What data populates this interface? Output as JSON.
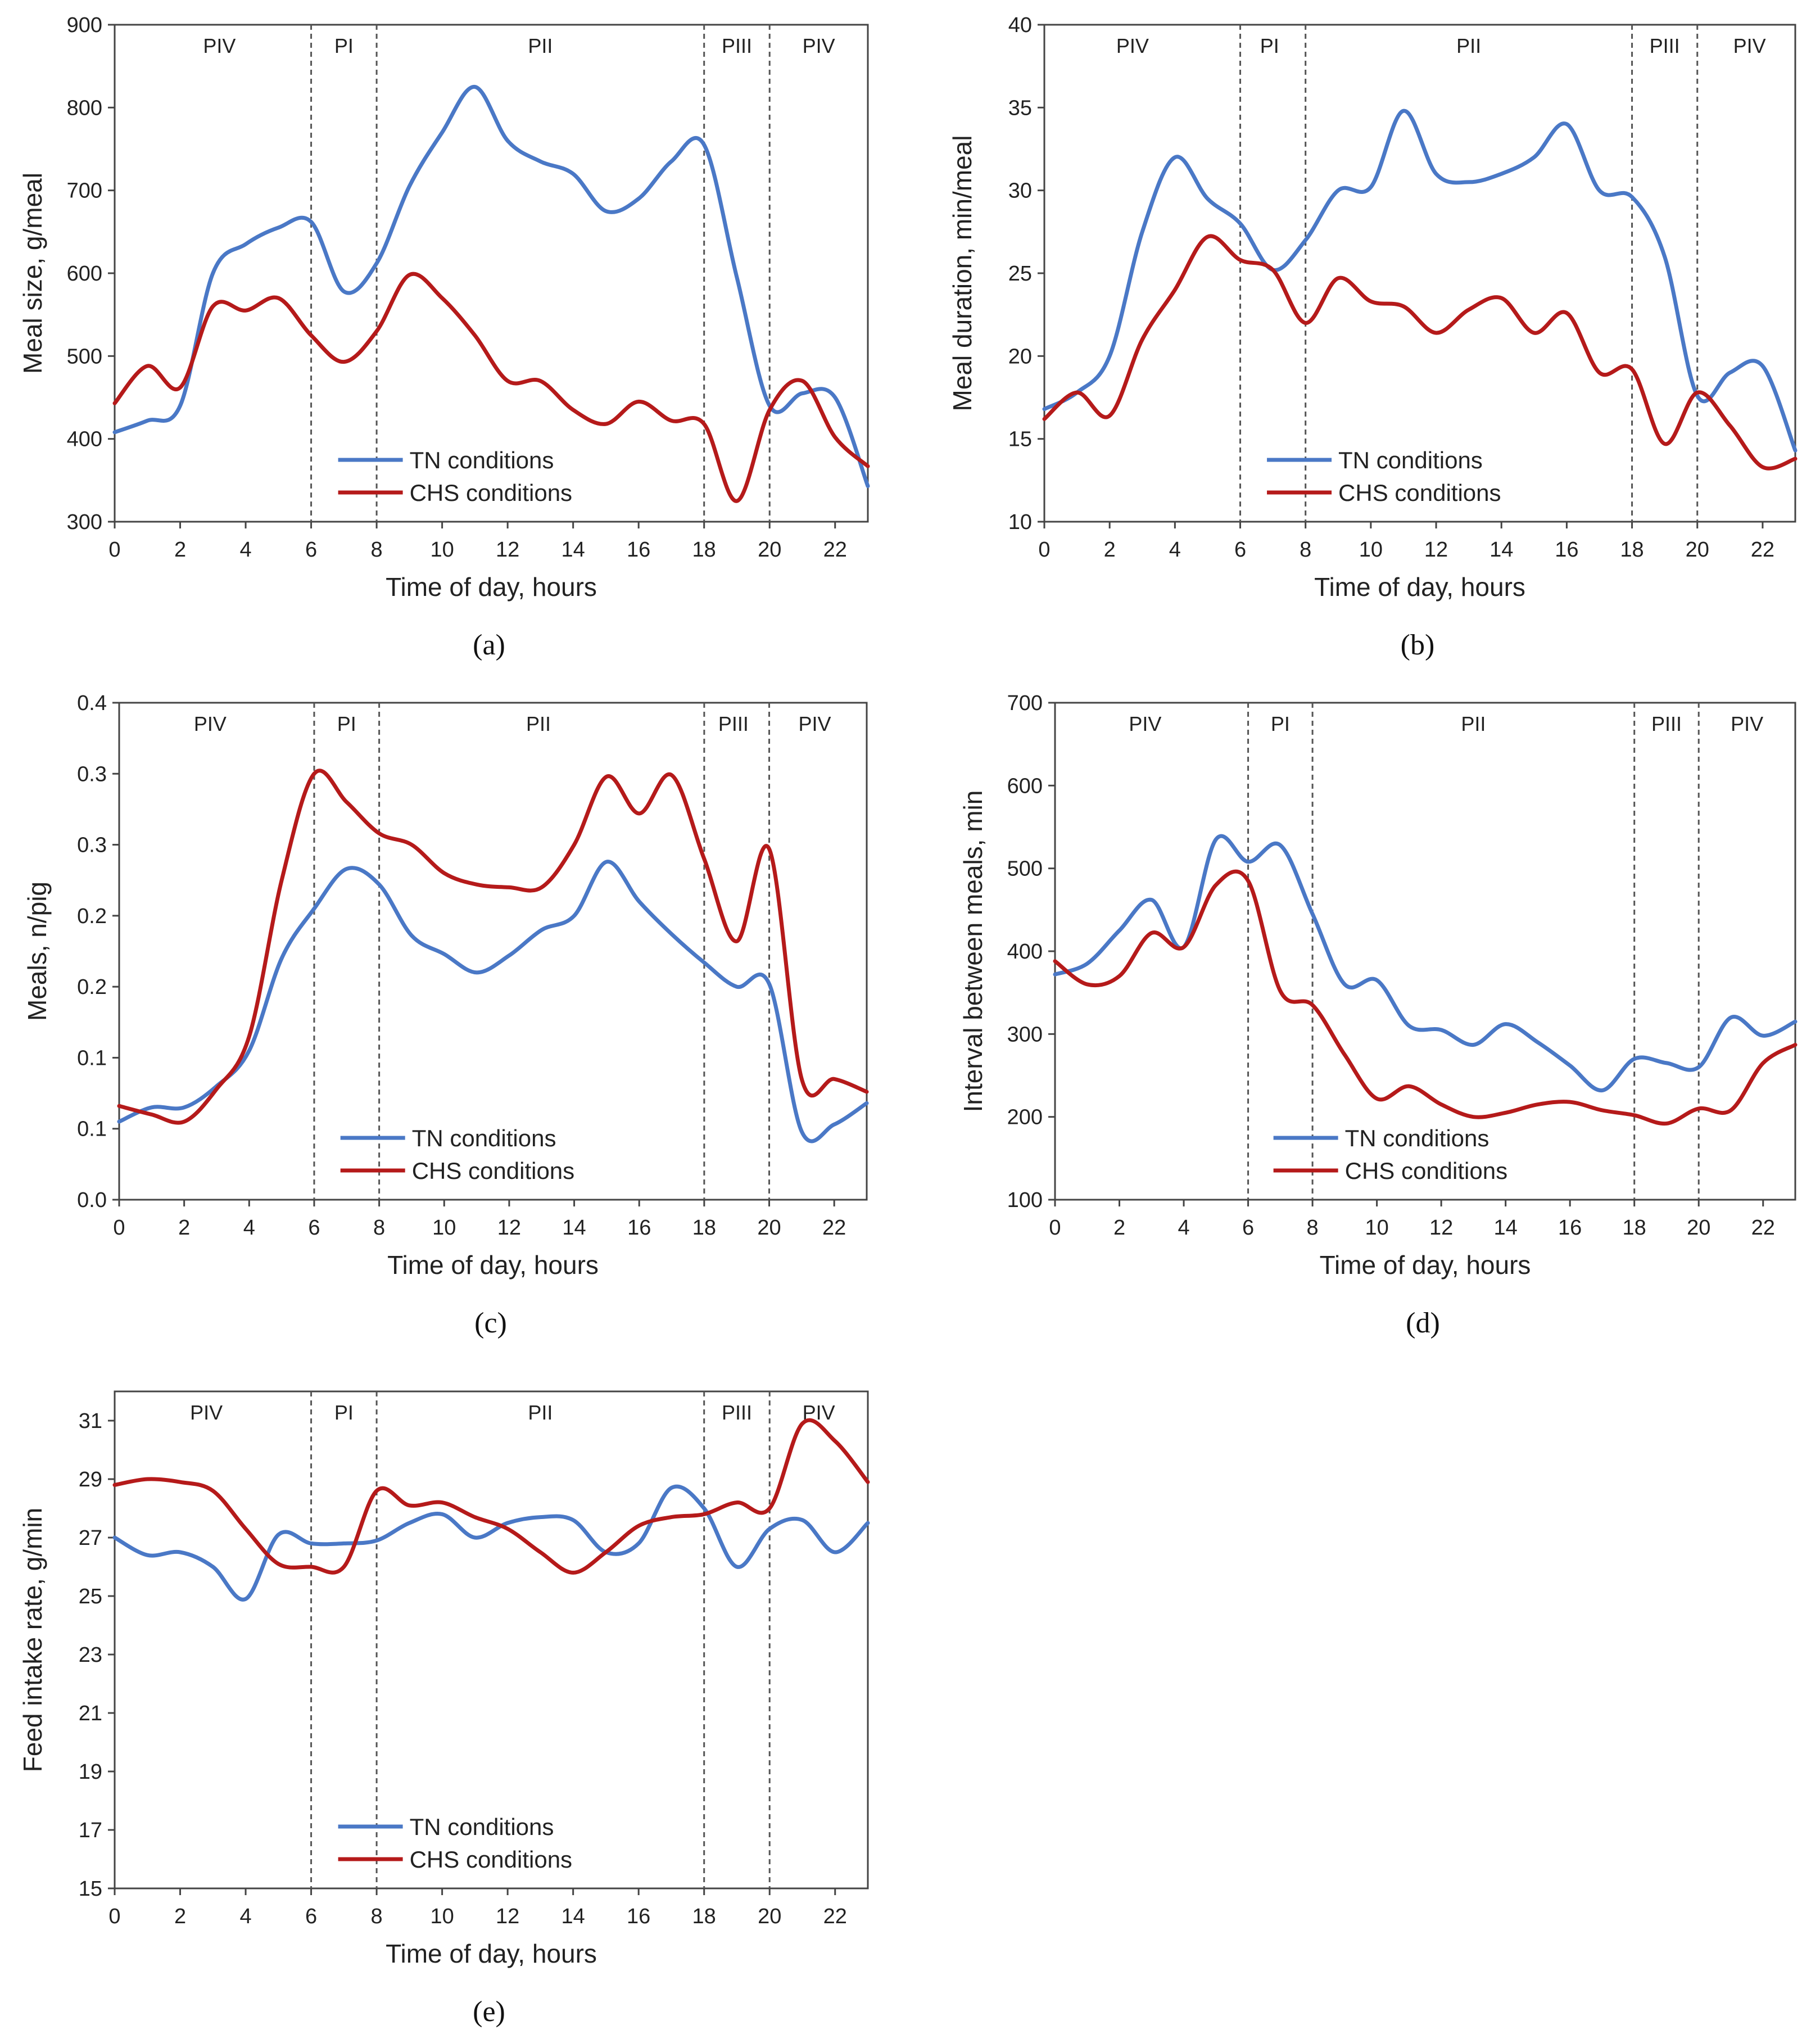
{
  "legend": {
    "tn": "TN conditions",
    "chs": "CHS conditions"
  },
  "colors": {
    "tn": "#4a78c6",
    "chs": "#b51a1a"
  },
  "chart_data": [
    {
      "id": "a",
      "label": "(a)",
      "type": "line",
      "ylabel": "Meal size, g/meal",
      "xlabel": "Time of day, hours",
      "ylim": [
        300,
        900
      ],
      "yticks": [
        300,
        400,
        500,
        600,
        700,
        800,
        900
      ],
      "ytick_labels": [
        "300",
        "400",
        "500",
        "600",
        "700",
        "800",
        "900"
      ],
      "xlim": [
        0,
        23
      ],
      "xticks": [
        0,
        2,
        4,
        6,
        8,
        10,
        12,
        14,
        16,
        18,
        20,
        22
      ],
      "xtick_labels": [
        "0",
        "2",
        "4",
        "6",
        "8",
        "10",
        "12",
        "14",
        "16",
        "18",
        "20",
        "22"
      ],
      "phase_boundaries": [
        6,
        8,
        18,
        20
      ],
      "phases": [
        {
          "label": "PIV",
          "x": 3.2
        },
        {
          "label": "PI",
          "x": 7
        },
        {
          "label": "PII",
          "x": 13
        },
        {
          "label": "PIII",
          "x": 19
        },
        {
          "label": "PIV",
          "x": 21.5
        }
      ],
      "legend_position": "bottom-center",
      "series": [
        {
          "name": "TN conditions",
          "key": "tn",
          "x": [
            0,
            1,
            2,
            3,
            4,
            5,
            6,
            7,
            8,
            9,
            10,
            11,
            12,
            13,
            14,
            15,
            16,
            17,
            18,
            19,
            20,
            21,
            22,
            23
          ],
          "values": [
            408,
            422,
            440,
            600,
            635,
            655,
            662,
            578,
            612,
            705,
            770,
            825,
            760,
            735,
            720,
            675,
            690,
            735,
            755,
            595,
            440,
            455,
            450,
            343
          ]
        },
        {
          "name": "CHS conditions",
          "key": "chs",
          "x": [
            0,
            1,
            2,
            3,
            4,
            5,
            6,
            7,
            8,
            9,
            10,
            11,
            12,
            13,
            14,
            15,
            16,
            17,
            18,
            19,
            20,
            21,
            22,
            23
          ],
          "values": [
            443,
            488,
            462,
            560,
            555,
            570,
            525,
            493,
            530,
            598,
            570,
            525,
            470,
            470,
            435,
            418,
            445,
            422,
            418,
            325,
            435,
            470,
            402,
            367
          ]
        }
      ]
    },
    {
      "id": "b",
      "label": "(b)",
      "type": "line",
      "ylabel": "Meal duration, min/meal",
      "xlabel": "Time of day, hours",
      "ylim": [
        10,
        40
      ],
      "yticks": [
        10,
        15,
        20,
        25,
        30,
        35,
        40
      ],
      "ytick_labels": [
        "10",
        "15",
        "20",
        "25",
        "30",
        "35",
        "40"
      ],
      "xlim": [
        0,
        23
      ],
      "xticks": [
        0,
        2,
        4,
        6,
        8,
        10,
        12,
        14,
        16,
        18,
        20,
        22
      ],
      "xtick_labels": [
        "0",
        "2",
        "4",
        "6",
        "8",
        "10",
        "12",
        "14",
        "16",
        "18",
        "20",
        "22"
      ],
      "phase_boundaries": [
        6,
        8,
        18,
        20
      ],
      "phases": [
        {
          "label": "PIV",
          "x": 2.7
        },
        {
          "label": "PI",
          "x": 6.9
        },
        {
          "label": "PII",
          "x": 13
        },
        {
          "label": "PIII",
          "x": 19
        },
        {
          "label": "PIV",
          "x": 21.6
        }
      ],
      "legend_position": "bottom-center",
      "series": [
        {
          "name": "TN conditions",
          "key": "tn",
          "x": [
            0,
            1,
            2,
            3,
            4,
            5,
            6,
            7,
            8,
            9,
            10,
            11,
            12,
            13,
            14,
            15,
            16,
            17,
            18,
            19,
            20,
            21,
            22,
            23
          ],
          "values": [
            16.8,
            17.8,
            20.0,
            27.5,
            32.0,
            29.5,
            28.0,
            25.2,
            27.0,
            30.0,
            30.2,
            34.8,
            31.0,
            30.5,
            31.0,
            32.0,
            34.0,
            30.0,
            29.6,
            26.0,
            17.6,
            19.0,
            19.4,
            14.3
          ]
        },
        {
          "name": "CHS conditions",
          "key": "chs",
          "x": [
            0,
            1,
            2,
            3,
            4,
            5,
            6,
            7,
            8,
            9,
            10,
            11,
            12,
            13,
            14,
            15,
            16,
            17,
            18,
            19,
            20,
            21,
            22,
            23
          ],
          "values": [
            16.2,
            17.8,
            16.4,
            21.0,
            24.0,
            27.2,
            25.8,
            25.2,
            22.0,
            24.7,
            23.3,
            23.0,
            21.4,
            22.8,
            23.5,
            21.4,
            22.6,
            19.0,
            19.2,
            14.7,
            17.8,
            15.8,
            13.3,
            13.8
          ]
        }
      ]
    },
    {
      "id": "c",
      "label": "(c)",
      "type": "line",
      "ylabel": "Meals, n/pig",
      "xlabel": "Time of day, hours",
      "ylim": [
        0,
        0.35
      ],
      "yticks": [
        0,
        0.05,
        0.1,
        0.15,
        0.2,
        0.25,
        0.3,
        0.35
      ],
      "ytick_labels": [
        "0.0",
        "0.1",
        "0.1",
        "0.2",
        "0.2",
        "0.3",
        "0.3",
        "0.4"
      ],
      "xlim": [
        0,
        23
      ],
      "xticks": [
        0,
        2,
        4,
        6,
        8,
        10,
        12,
        14,
        16,
        18,
        20,
        22
      ],
      "xtick_labels": [
        "0",
        "2",
        "4",
        "6",
        "8",
        "10",
        "12",
        "14",
        "16",
        "18",
        "20",
        "22"
      ],
      "phase_boundaries": [
        6,
        8,
        18,
        20
      ],
      "phases": [
        {
          "label": "PIV",
          "x": 2.8
        },
        {
          "label": "PI",
          "x": 7
        },
        {
          "label": "PII",
          "x": 12.9
        },
        {
          "label": "PIII",
          "x": 18.9
        },
        {
          "label": "PIV",
          "x": 21.4
        }
      ],
      "legend_position": "bottom-center",
      "series": [
        {
          "name": "TN conditions",
          "key": "tn",
          "x": [
            0,
            1,
            2,
            3,
            4,
            5,
            6,
            7,
            8,
            9,
            10,
            11,
            12,
            13,
            14,
            15,
            16,
            17,
            18,
            19,
            20,
            21,
            22,
            23
          ],
          "values": [
            0.055,
            0.065,
            0.065,
            0.08,
            0.105,
            0.17,
            0.205,
            0.233,
            0.222,
            0.186,
            0.173,
            0.16,
            0.172,
            0.19,
            0.2,
            0.238,
            0.21,
            0.187,
            0.167,
            0.15,
            0.152,
            0.048,
            0.053,
            0.068
          ]
        },
        {
          "name": "CHS conditions",
          "key": "chs",
          "x": [
            0,
            1,
            2,
            3,
            4,
            5,
            6,
            7,
            8,
            9,
            10,
            11,
            12,
            13,
            14,
            15,
            16,
            17,
            18,
            19,
            20,
            21,
            22,
            23
          ],
          "values": [
            0.066,
            0.06,
            0.055,
            0.078,
            0.115,
            0.225,
            0.3,
            0.28,
            0.258,
            0.25,
            0.23,
            0.222,
            0.22,
            0.22,
            0.25,
            0.298,
            0.272,
            0.299,
            0.24,
            0.182,
            0.247,
            0.085,
            0.085,
            0.076
          ]
        }
      ]
    },
    {
      "id": "d",
      "label": "(d)",
      "type": "line",
      "ylabel": "Interval between meals, min",
      "xlabel": "Time of day, hours",
      "ylim": [
        100,
        700
      ],
      "yticks": [
        100,
        200,
        300,
        400,
        500,
        600,
        700
      ],
      "ytick_labels": [
        "100",
        "200",
        "300",
        "400",
        "500",
        "600",
        "700"
      ],
      "xlim": [
        0,
        23
      ],
      "xticks": [
        0,
        2,
        4,
        6,
        8,
        10,
        12,
        14,
        16,
        18,
        20,
        22
      ],
      "xtick_labels": [
        "0",
        "2",
        "4",
        "6",
        "8",
        "10",
        "12",
        "14",
        "16",
        "18",
        "20",
        "22"
      ],
      "phase_boundaries": [
        6,
        8,
        18,
        20
      ],
      "phases": [
        {
          "label": "PIV",
          "x": 2.8
        },
        {
          "label": "PI",
          "x": 7
        },
        {
          "label": "PII",
          "x": 13
        },
        {
          "label": "PIII",
          "x": 19
        },
        {
          "label": "PIV",
          "x": 21.5
        }
      ],
      "legend_position": "bottom-center",
      "series": [
        {
          "name": "TN conditions",
          "key": "tn",
          "x": [
            0,
            1,
            2,
            3,
            4,
            5,
            6,
            7,
            8,
            9,
            10,
            11,
            12,
            13,
            14,
            15,
            16,
            17,
            18,
            19,
            20,
            21,
            22,
            23
          ],
          "values": [
            372,
            385,
            425,
            462,
            405,
            535,
            508,
            528,
            445,
            360,
            365,
            310,
            305,
            287,
            312,
            290,
            262,
            232,
            270,
            265,
            260,
            320,
            298,
            315
          ]
        },
        {
          "name": "CHS conditions",
          "key": "chs",
          "x": [
            0,
            1,
            2,
            3,
            4,
            5,
            6,
            7,
            8,
            9,
            10,
            11,
            12,
            13,
            14,
            15,
            16,
            17,
            18,
            19,
            20,
            21,
            22,
            23
          ],
          "values": [
            388,
            360,
            370,
            422,
            405,
            480,
            485,
            352,
            335,
            275,
            222,
            237,
            215,
            200,
            205,
            215,
            218,
            208,
            202,
            192,
            210,
            208,
            265,
            287
          ]
        }
      ]
    },
    {
      "id": "e",
      "label": "(e)",
      "type": "line",
      "ylabel": "Feed intake rate, g/min",
      "xlabel": "Time of day, hours",
      "ylim": [
        15,
        32
      ],
      "yticks": [
        15,
        17,
        19,
        21,
        23,
        25,
        27,
        29,
        31
      ],
      "ytick_labels": [
        "15",
        "17",
        "19",
        "21",
        "23",
        "25",
        "27",
        "29",
        "31"
      ],
      "xlim": [
        0,
        23
      ],
      "xticks": [
        0,
        2,
        4,
        6,
        8,
        10,
        12,
        14,
        16,
        18,
        20,
        22
      ],
      "xtick_labels": [
        "0",
        "2",
        "4",
        "6",
        "8",
        "10",
        "12",
        "14",
        "16",
        "18",
        "20",
        "22"
      ],
      "phase_boundaries": [
        6,
        8,
        18,
        20
      ],
      "phases": [
        {
          "label": "PIV",
          "x": 2.8
        },
        {
          "label": "PI",
          "x": 7
        },
        {
          "label": "PII",
          "x": 13
        },
        {
          "label": "PIII",
          "x": 19
        },
        {
          "label": "PIV",
          "x": 21.5
        }
      ],
      "legend_position": "bottom-center",
      "series": [
        {
          "name": "TN conditions",
          "key": "tn",
          "x": [
            0,
            1,
            2,
            3,
            4,
            5,
            6,
            7,
            8,
            9,
            10,
            11,
            12,
            13,
            14,
            15,
            16,
            17,
            18,
            19,
            20,
            21,
            22,
            23
          ],
          "values": [
            27.0,
            26.4,
            26.5,
            26.0,
            24.9,
            27.1,
            26.8,
            26.8,
            26.9,
            27.5,
            27.8,
            27.0,
            27.5,
            27.7,
            27.6,
            26.5,
            26.8,
            28.7,
            28.0,
            26.0,
            27.3,
            27.6,
            26.5,
            27.5
          ]
        },
        {
          "name": "CHS conditions",
          "key": "chs",
          "x": [
            0,
            1,
            2,
            3,
            4,
            5,
            6,
            7,
            8,
            9,
            10,
            11,
            12,
            13,
            14,
            15,
            16,
            17,
            18,
            19,
            20,
            21,
            22,
            23
          ],
          "values": [
            28.8,
            29.0,
            28.9,
            28.6,
            27.3,
            26.1,
            26.0,
            26.0,
            28.6,
            28.1,
            28.2,
            27.7,
            27.3,
            26.5,
            25.8,
            26.5,
            27.4,
            27.7,
            27.8,
            28.2,
            28.0,
            30.9,
            30.3,
            28.9
          ]
        }
      ]
    }
  ]
}
